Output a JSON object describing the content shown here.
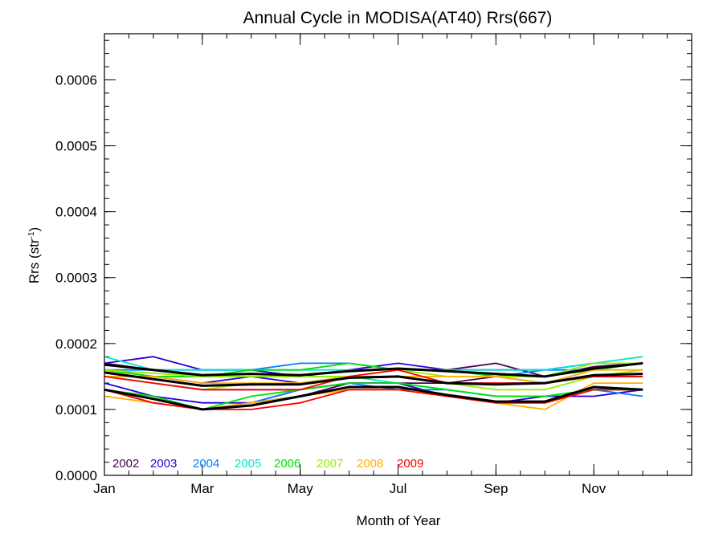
{
  "chart_data": {
    "type": "line",
    "title": "Annual Cycle in MODISA(AT40) Rrs(667)",
    "xlabel": "Month of Year",
    "ylabel_main": "Rrs (str",
    "ylabel_sup": "-1",
    "ylabel_end": ")",
    "xlim": [
      1,
      13
    ],
    "ylim": [
      0,
      0.00067
    ],
    "xticks": [
      {
        "value": 1,
        "label": "Jan"
      },
      {
        "value": 3,
        "label": "Mar"
      },
      {
        "value": 5,
        "label": "May"
      },
      {
        "value": 7,
        "label": "Jul"
      },
      {
        "value": 9,
        "label": "Sep"
      },
      {
        "value": 11,
        "label": "Nov"
      }
    ],
    "yticks": [
      {
        "value": 0.0,
        "label": "0.0000"
      },
      {
        "value": 0.0001,
        "label": "0.0001"
      },
      {
        "value": 0.0002,
        "label": "0.0002"
      },
      {
        "value": 0.0003,
        "label": "0.0003"
      },
      {
        "value": 0.0004,
        "label": "0.0004"
      },
      {
        "value": 0.0005,
        "label": "0.0005"
      },
      {
        "value": 0.0006,
        "label": "0.0006"
      }
    ],
    "x": [
      1,
      2,
      3,
      4,
      5,
      6,
      7,
      8,
      9,
      10,
      11,
      12
    ],
    "series": [
      {
        "name": "2002",
        "color": "#4b0055",
        "groups": [
          [
            0.00017,
            0.00016,
            0.00015,
            0.00015,
            0.00015,
            0.00016,
            0.00016,
            0.00016,
            0.00017,
            0.00015,
            0.000165,
            0.00017
          ],
          [
            0.00015,
            0.00014,
            0.00013,
            0.00013,
            0.00013,
            0.00014,
            0.00014,
            0.00014,
            0.00015,
            0.00014,
            0.00015,
            0.00015
          ],
          [
            0.00013,
            0.00011,
            0.0001,
            0.00011,
            0.00012,
            0.00014,
            0.00014,
            0.00012,
            0.00011,
            0.00011,
            0.00013,
            0.00013
          ]
        ]
      },
      {
        "name": "2003",
        "color": "#2a00d8",
        "groups": [
          [
            0.00017,
            0.00018,
            0.00016,
            0.00016,
            0.00015,
            0.00016,
            0.00017,
            0.00016,
            0.00016,
            0.00016,
            0.00017,
            0.00017
          ],
          [
            0.00016,
            0.00015,
            0.00014,
            0.00015,
            0.00014,
            0.00015,
            0.00015,
            0.00014,
            0.00014,
            0.00014,
            0.00015,
            0.00015
          ],
          [
            0.00014,
            0.00012,
            0.00011,
            0.00011,
            0.00013,
            0.00014,
            0.00014,
            0.00012,
            0.00011,
            0.00012,
            0.00012,
            0.00013
          ]
        ]
      },
      {
        "name": "2004",
        "color": "#0080ff",
        "groups": [
          [
            0.00016,
            0.00016,
            0.00016,
            0.00016,
            0.00017,
            0.00017,
            0.00016,
            0.00016,
            0.00015,
            0.00016,
            0.00016,
            0.00017
          ],
          [
            0.00013,
            0.00012,
            0.0001,
            0.00011,
            0.00013,
            0.00014,
            0.00013,
            0.00013,
            0.00012,
            0.00012,
            0.00013,
            0.00012
          ]
        ]
      },
      {
        "name": "2005",
        "color": "#00e8d0",
        "groups": [
          [
            0.00018,
            0.00016,
            0.00016,
            0.00016,
            0.00016,
            0.00016,
            0.00016,
            0.00016,
            0.00016,
            0.00016,
            0.00017,
            0.00018
          ],
          [
            0.00016,
            0.00015,
            0.00015,
            0.00015,
            0.00015,
            0.00015,
            0.00014,
            0.00013,
            0.00012,
            0.00012,
            0.00013,
            0.00013
          ]
        ]
      },
      {
        "name": "2006",
        "color": "#00e000",
        "groups": [
          [
            0.00016,
            0.00015,
            0.00015,
            0.00016,
            0.00016,
            0.00017,
            0.00016,
            0.00016,
            0.00015,
            0.00015,
            0.00016,
            0.00017
          ],
          [
            0.00013,
            0.00012,
            0.0001,
            0.00012,
            0.00013,
            0.00014,
            0.00014,
            0.00013,
            0.00012,
            0.00012,
            0.00013,
            0.00013
          ]
        ]
      },
      {
        "name": "2007",
        "color": "#99ee00",
        "groups": [
          [
            0.00016,
            0.000155,
            0.00015,
            0.00015,
            0.00015,
            0.00015,
            0.00016,
            0.00015,
            0.00015,
            0.00015,
            0.00017,
            0.00017
          ],
          [
            0.00015,
            0.00014,
            0.00013,
            0.00014,
            0.00014,
            0.00015,
            0.00015,
            0.00014,
            0.00013,
            0.00013,
            0.00015,
            0.00016
          ]
        ]
      },
      {
        "name": "2008",
        "color": "#ffb000",
        "groups": [
          [
            0.00015,
            0.00015,
            0.00014,
            0.00014,
            0.00014,
            0.00015,
            0.00015,
            0.00015,
            0.00015,
            0.00014,
            0.00016,
            0.00016
          ],
          [
            0.00012,
            0.00011,
            0.0001,
            0.00011,
            0.00012,
            0.00013,
            0.00013,
            0.00012,
            0.00011,
            0.0001,
            0.00014,
            0.00014
          ]
        ]
      },
      {
        "name": "2009",
        "color": "#ff0000",
        "groups": [
          [
            0.00015,
            0.00014,
            0.00013,
            0.00013,
            0.00013,
            0.00015,
            0.00016,
            0.00014,
            0.00014,
            0.00014,
            0.00015,
            0.00015
          ],
          [
            0.00013,
            0.00011,
            0.0001,
            0.0001,
            0.00011,
            0.00013,
            0.00013,
            0.00012,
            0.00011,
            0.00011,
            0.00013,
            0.00013
          ]
        ]
      },
      {
        "name": "",
        "color": "#000000",
        "groups": [
          [
            0.000168,
            0.00016,
            0.000152,
            0.000154,
            0.000152,
            0.000158,
            0.000162,
            0.000158,
            0.000154,
            0.00015,
            0.000162,
            0.00017
          ],
          [
            0.000156,
            0.000146,
            0.000136,
            0.000138,
            0.000138,
            0.000148,
            0.00015,
            0.00014,
            0.000138,
            0.00014,
            0.000152,
            0.000154
          ],
          [
            0.00013,
            0.000116,
            0.0001,
            0.000106,
            0.00012,
            0.000134,
            0.000134,
            0.000122,
            0.000112,
            0.000112,
            0.000134,
            0.00013
          ]
        ]
      }
    ],
    "legend": [
      "2002",
      "2003",
      "2004",
      "2005",
      "2006",
      "2007",
      "2008",
      "2009"
    ],
    "legend_placement": "bottom-left",
    "grid": false
  }
}
